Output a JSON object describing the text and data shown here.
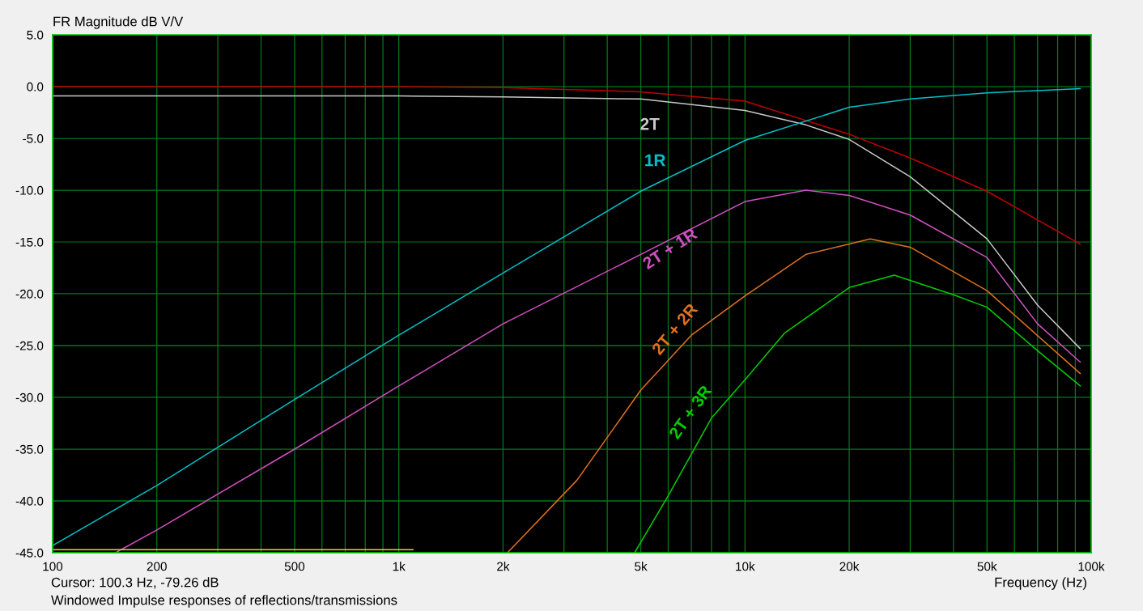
{
  "chart_data": {
    "type": "line",
    "ylabel": "FR Magnitude dB V/V",
    "xlabel": "Frequency (Hz)",
    "annotations": [
      "Cursor: 100.3 Hz, -79.26 dB",
      "Windowed Impulse responses of reflections/transmissions"
    ],
    "log": "x",
    "xlim": [
      100,
      100000
    ],
    "ylim": [
      -45,
      5
    ],
    "xticks": [
      {
        "value": 100,
        "label": "100"
      },
      {
        "value": 200,
        "label": "200"
      },
      {
        "value": 300,
        "label": null
      },
      {
        "value": 400,
        "label": null
      },
      {
        "value": 500,
        "label": "500"
      },
      {
        "value": 600,
        "label": null
      },
      {
        "value": 700,
        "label": null
      },
      {
        "value": 800,
        "label": null
      },
      {
        "value": 900,
        "label": null
      },
      {
        "value": 1000,
        "label": "1k"
      },
      {
        "value": 2000,
        "label": "2k"
      },
      {
        "value": 3000,
        "label": null
      },
      {
        "value": 4000,
        "label": null
      },
      {
        "value": 5000,
        "label": "5k"
      },
      {
        "value": 6000,
        "label": null
      },
      {
        "value": 7000,
        "label": null
      },
      {
        "value": 8000,
        "label": null
      },
      {
        "value": 9000,
        "label": null
      },
      {
        "value": 10000,
        "label": "10k"
      },
      {
        "value": 20000,
        "label": "20k"
      },
      {
        "value": 30000,
        "label": null
      },
      {
        "value": 40000,
        "label": null
      },
      {
        "value": 50000,
        "label": "50k"
      },
      {
        "value": 60000,
        "label": null
      },
      {
        "value": 70000,
        "label": null
      },
      {
        "value": 80000,
        "label": null
      },
      {
        "value": 90000,
        "label": null
      },
      {
        "value": 100000,
        "label": "100k"
      }
    ],
    "yticks": [
      {
        "value": 5,
        "label": "5.0"
      },
      {
        "value": 0,
        "label": "0.0"
      },
      {
        "value": -5,
        "label": "-5.0"
      },
      {
        "value": -10,
        "label": "-10.0"
      },
      {
        "value": -15,
        "label": "-15.0"
      },
      {
        "value": -20,
        "label": "-20.0"
      },
      {
        "value": -25,
        "label": "-25.0"
      },
      {
        "value": -30,
        "label": "-30.0"
      },
      {
        "value": -35,
        "label": "-35.0"
      },
      {
        "value": -40,
        "label": "-40.0"
      },
      {
        "value": -45,
        "label": "-45.0"
      }
    ],
    "grid": true,
    "legend": false,
    "series": [
      {
        "color": "#c00000",
        "x": [
          100,
          1000,
          2000,
          5000,
          10000,
          20000,
          30000,
          50000,
          93000
        ],
        "values": [
          0,
          0,
          -0.1,
          -0.5,
          -1.4,
          -4.6,
          -6.9,
          -10.1,
          -15.2
        ]
      },
      {
        "name": "2T",
        "color": "#c8c8c8",
        "x": [
          100,
          1000,
          2000,
          5000,
          10000,
          15000,
          20000,
          30000,
          50000,
          70000,
          93000
        ],
        "values": [
          -0.9,
          -0.9,
          -1.0,
          -1.2,
          -2.3,
          -3.7,
          -5.1,
          -8.7,
          -14.7,
          -21.1,
          -25.3
        ]
      },
      {
        "name": "1R",
        "color": "#00c0c8",
        "x": [
          100,
          200,
          500,
          1000,
          2000,
          5000,
          10000,
          20000,
          30000,
          50000,
          93000
        ],
        "values": [
          -44.3,
          -38.5,
          -30.2,
          -24.0,
          -18.0,
          -10.1,
          -5.2,
          -2.0,
          -1.2,
          -0.6,
          -0.2
        ]
      },
      {
        "name": "2T + 1R",
        "color": "#d050c0",
        "x": [
          152,
          200,
          500,
          1000,
          2000,
          5000,
          10000,
          15000,
          20000,
          30000,
          50000,
          70000,
          93000
        ],
        "values": [
          -45,
          -42.8,
          -35.0,
          -28.9,
          -22.9,
          -16.2,
          -11.1,
          -10.0,
          -10.5,
          -12.4,
          -16.5,
          -22.9,
          -26.6
        ]
      },
      {
        "name": "2T + 2R",
        "color": "#e07020",
        "x": [
          2060,
          3270,
          5000,
          7000,
          10000,
          15000,
          23000,
          30000,
          50000,
          93000
        ],
        "values": [
          -45,
          -38.0,
          -29.3,
          -24.0,
          -20.2,
          -16.2,
          -14.7,
          -15.5,
          -19.7,
          -27.7
        ]
      },
      {
        "name": "2T + 3R",
        "color": "#00cc00",
        "x": [
          4800,
          6000,
          8000,
          10000,
          13000,
          20000,
          27000,
          40000,
          50000,
          70000,
          93000
        ],
        "values": [
          -45,
          -39.5,
          -32.0,
          -28.3,
          -23.8,
          -19.4,
          -18.2,
          -20.1,
          -21.3,
          -25.5,
          -28.9
        ]
      },
      {
        "color": "#e0e000",
        "x": [
          100,
          1100
        ],
        "values": [
          -44.7,
          -44.7
        ]
      }
    ]
  }
}
